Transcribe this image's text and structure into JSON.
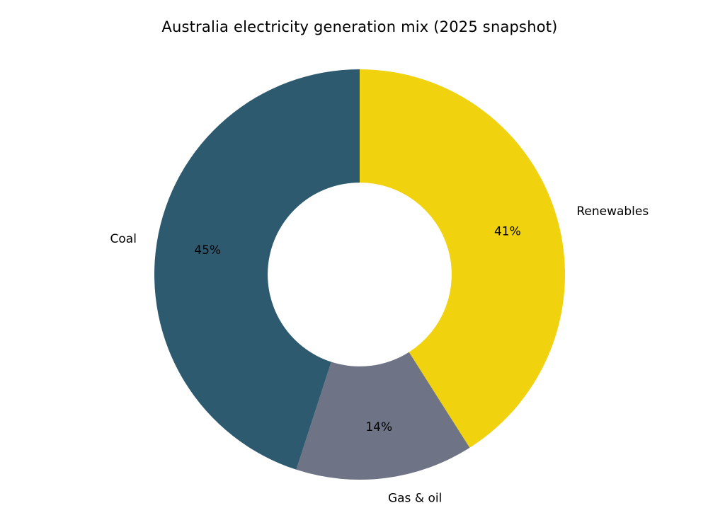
{
  "chart_data": {
    "type": "pie",
    "subtype": "donut",
    "title": "Australia electricity generation mix (2025 snapshot)",
    "categories": [
      "Renewables",
      "Gas & oil",
      "Coal"
    ],
    "values": [
      41,
      14,
      45
    ],
    "pct_labels": [
      "41%",
      "14%",
      "45%"
    ],
    "colors": [
      "#f0d20f",
      "#6e7486",
      "#2e5a70"
    ],
    "start_angle_deg_from_top": 0,
    "direction": "clockwise",
    "inner_radius_ratio": 0.448,
    "legend": "none",
    "label_position": "outside",
    "pct_position": "inside"
  }
}
